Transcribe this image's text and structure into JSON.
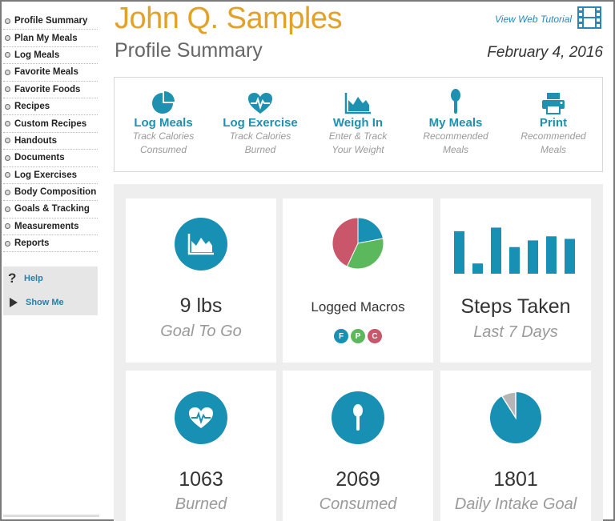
{
  "sidebar": {
    "items": [
      {
        "label": "Profile Summary"
      },
      {
        "label": "Plan My Meals"
      },
      {
        "label": "Log Meals"
      },
      {
        "label": "Favorite Meals"
      },
      {
        "label": "Favorite Foods"
      },
      {
        "label": "Recipes"
      },
      {
        "label": "Custom Recipes"
      },
      {
        "label": "Handouts"
      },
      {
        "label": "Documents"
      },
      {
        "label": "Log Exercises"
      },
      {
        "label": "Body Composition"
      },
      {
        "label": "Goals & Tracking"
      },
      {
        "label": "Measurements"
      },
      {
        "label": "Reports"
      }
    ],
    "help": {
      "icon": "question-mark-icon",
      "label": "Help"
    },
    "show_me": {
      "icon": "play-triangle-icon",
      "label": "Show Me"
    }
  },
  "header": {
    "name": "John Q. Samples",
    "subtitle": "Profile Summary",
    "date": "February 4, 2016",
    "tutorial_label": "View Web Tutorial",
    "tutorial_icon": "film-strip-icon"
  },
  "actions": [
    {
      "label": "Log Meals",
      "desc1": "Track Calories",
      "desc2": "Consumed",
      "icon": "pie-chart-icon"
    },
    {
      "label": "Log Exercise",
      "desc1": "Track Calories",
      "desc2": "Burned",
      "icon": "heartbeat-icon"
    },
    {
      "label": "Weigh In",
      "desc1": "Enter & Track",
      "desc2": "Your Weight",
      "icon": "area-chart-icon"
    },
    {
      "label": "My Meals",
      "desc1": "Recommended",
      "desc2": "Meals",
      "icon": "spoon-icon"
    },
    {
      "label": "Print",
      "desc1": "Recommended",
      "desc2": "Meals",
      "icon": "printer-icon"
    }
  ],
  "tiles": {
    "goal": {
      "value": "9 lbs",
      "caption": "Goal To Go",
      "icon": "area-chart-icon"
    },
    "macros": {
      "title": "Logged Macros",
      "badges": [
        {
          "letter": "F",
          "color": "#1790b3"
        },
        {
          "letter": "P",
          "color": "#5cb85c"
        },
        {
          "letter": "C",
          "color": "#c9566a"
        }
      ],
      "slices": [
        {
          "letter": "F",
          "value": 0.22,
          "color": "#1790b3"
        },
        {
          "letter": "P",
          "value": 0.35,
          "color": "#5cb85c"
        },
        {
          "letter": "C",
          "value": 0.43,
          "color": "#c9566a"
        }
      ]
    },
    "steps": {
      "title": "Steps Taken",
      "caption": "Last 7 Days",
      "values": [
        0.83,
        0.2,
        0.9,
        0.52,
        0.65,
        0.73,
        0.68
      ],
      "color": "#1790b3"
    },
    "burned": {
      "value": "1063",
      "caption": "Burned",
      "icon": "heartbeat-icon"
    },
    "consumed": {
      "value": "2069",
      "caption": "Consumed",
      "icon": "spoon-icon"
    },
    "intake": {
      "value": "1801",
      "caption": "Daily Intake Goal",
      "fraction_remaining": 0.09
    }
  },
  "colors": {
    "accent": "#1790b3",
    "name": "#e3a128",
    "link": "#2a86b8"
  }
}
